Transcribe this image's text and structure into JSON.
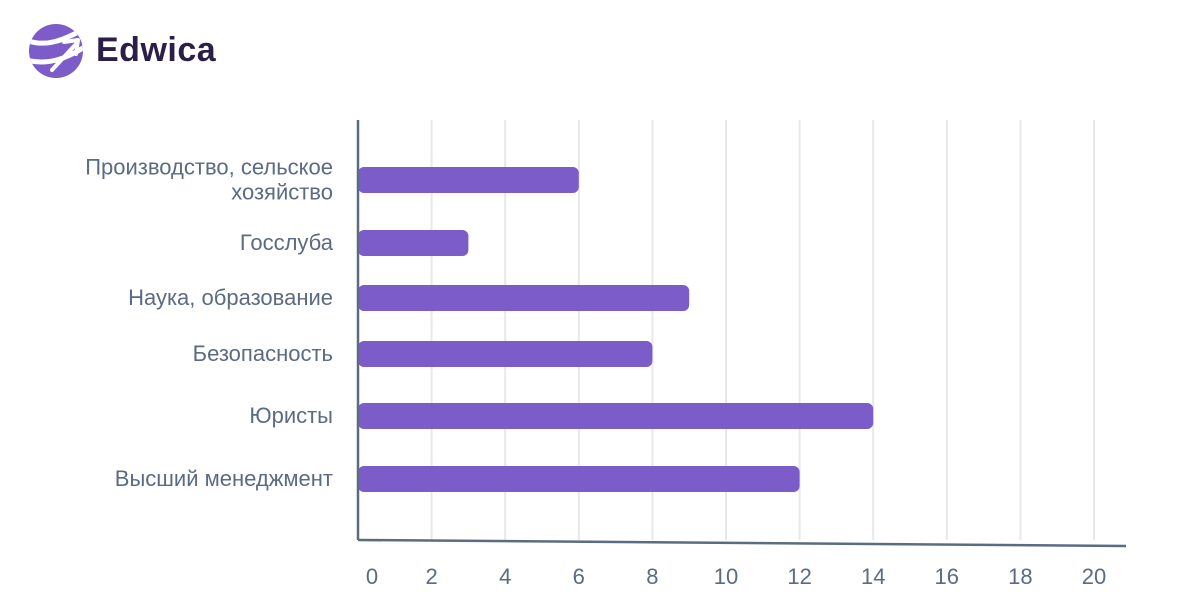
{
  "brand": {
    "name": "Edwica",
    "accent_color": "#7c5cc9",
    "text_color": "#2b1f47"
  },
  "chart_data": {
    "type": "bar",
    "orientation": "horizontal",
    "title": "",
    "xlabel": "",
    "ylabel": "",
    "categories": [
      [
        "Производство, сельское",
        "хозяйство"
      ],
      [
        "Госслуба"
      ],
      [
        "Наука, образование"
      ],
      [
        "Безопасность"
      ],
      [
        "Юристы"
      ],
      [
        "Высший менеджмент"
      ]
    ],
    "values": [
      6,
      3,
      9,
      8,
      14,
      12
    ],
    "xlim": [
      0,
      20
    ],
    "xticks": [
      0,
      2,
      4,
      6,
      8,
      10,
      12,
      14,
      16,
      18,
      20
    ],
    "grid": true,
    "bar_color": "#7c5cc9",
    "grid_color": "#e6e8ec",
    "axis_color": "#5b6b82"
  }
}
